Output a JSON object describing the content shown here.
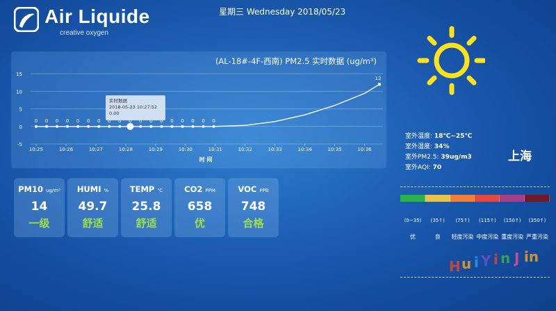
{
  "header": {
    "brand": "Air Liquide",
    "tagline": "creative oxygen",
    "date": "星期三 Wednesday 2018/05/23"
  },
  "chart_panel": {
    "title": "(AL-18#-4F-西南)  PM2.5 实时数据 (ug/m³)",
    "tooltip": {
      "title": "实时数据",
      "time": "2018-05-23 10:27:52",
      "value": "0.00"
    }
  },
  "chart_data": {
    "type": "line",
    "xlabel": "时 间",
    "ylim": [
      -5,
      15
    ],
    "yticks": [
      -5,
      0,
      5,
      10,
      15
    ],
    "xticks": [
      "10:25",
      "10:26",
      "10:27",
      "10:28",
      "10:29",
      "10:30",
      "10:31",
      "10:32",
      "10:33",
      "10:34",
      "10:35",
      "10:36"
    ],
    "x_range_minutes": [
      0,
      11.5
    ],
    "points": [
      {
        "t": 0.0,
        "v": 0
      },
      {
        "t": 0.35,
        "v": 0
      },
      {
        "t": 0.7,
        "v": 0
      },
      {
        "t": 1.05,
        "v": 0
      },
      {
        "t": 1.4,
        "v": 0
      },
      {
        "t": 1.75,
        "v": 0
      },
      {
        "t": 2.1,
        "v": 0
      },
      {
        "t": 2.45,
        "v": 0
      },
      {
        "t": 2.8,
        "v": 0
      },
      {
        "t": 3.15,
        "v": 0
      },
      {
        "t": 3.5,
        "v": 0
      },
      {
        "t": 3.85,
        "v": 0
      },
      {
        "t": 4.2,
        "v": 0
      },
      {
        "t": 4.55,
        "v": 0
      },
      {
        "t": 4.9,
        "v": 0
      },
      {
        "t": 5.25,
        "v": 0
      },
      {
        "t": 5.6,
        "v": 0
      },
      {
        "t": 5.95,
        "v": 0
      }
    ],
    "curve": [
      {
        "t": 5.95,
        "v": 0
      },
      {
        "t": 7.0,
        "v": 0.3
      },
      {
        "t": 8.0,
        "v": 1.4
      },
      {
        "t": 9.0,
        "v": 3.3
      },
      {
        "t": 10.0,
        "v": 6.0
      },
      {
        "t": 11.0,
        "v": 9.4
      },
      {
        "t": 11.5,
        "v": 12
      }
    ],
    "end_point": {
      "t": 11.5,
      "v": 12,
      "label": "12"
    },
    "highlight_t": 3.15
  },
  "metrics": [
    {
      "name": "PM10",
      "unit": "ug/m³",
      "value": "14",
      "level": "一级"
    },
    {
      "name": "HUMI",
      "unit": "%",
      "value": "49.7",
      "level": "舒适"
    },
    {
      "name": "TEMP",
      "unit": "℃",
      "value": "25.8",
      "level": "舒适"
    },
    {
      "name": "CO2",
      "unit": "PPM",
      "value": "658",
      "level": "优"
    },
    {
      "name": "VOC",
      "unit": "PPB",
      "value": "748",
      "level": "合格"
    }
  ],
  "weather": {
    "temp_label": "室外温度:",
    "temp_value": "18℃~25℃",
    "humi_label": "室外湿度:",
    "humi_value": "34%",
    "pm_label": "室外PM2.5:",
    "pm_value": "39ug/m3",
    "aqi_label": "室外AQI:",
    "aqi_value": "70",
    "city": "上海"
  },
  "aqi_scale": {
    "colors": [
      "#2bb34a",
      "#e8c54a",
      "#f07f3a",
      "#e2483e",
      "#a63c86",
      "#6e1a2a"
    ],
    "ranges": [
      "(0~35)",
      "(35↑)",
      "(75↑)",
      "(115↑)",
      "(150↑)",
      "(350↑)"
    ],
    "labels": [
      "优",
      "良",
      "轻度污染",
      "中度污染",
      "重度污染",
      "严重污染"
    ]
  }
}
